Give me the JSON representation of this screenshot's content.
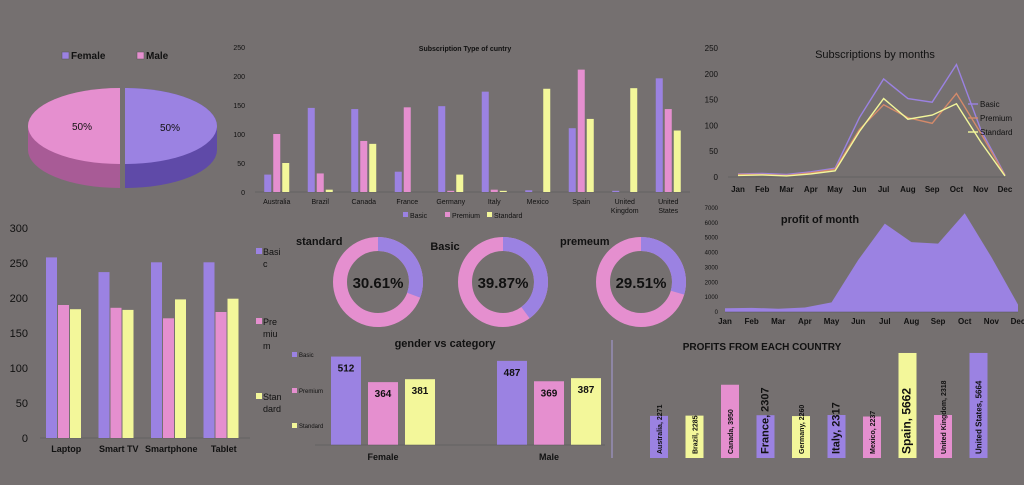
{
  "colors": {
    "basic": "#9b82e2",
    "premium": "#e58fcf",
    "standard": "#f3f79a",
    "bg": "#757070",
    "female": "#9b82e2",
    "male": "#e58fcf"
  },
  "chart_data": [
    {
      "id": "gender_pie",
      "type": "pie",
      "legend": [
        "Female",
        "Male"
      ],
      "values": [
        50,
        50
      ],
      "labels": [
        "50%",
        "50%"
      ]
    },
    {
      "id": "country_subs",
      "type": "bar",
      "title": "Subscription Type of cuntry",
      "categories": [
        "Australia",
        "Brazil",
        "Canada",
        "France",
        "Germany",
        "Italy",
        "Mexico",
        "Spain",
        "United Kingdom",
        "United States"
      ],
      "ylim": [
        0,
        250
      ],
      "yticks": [
        0,
        50,
        100,
        150,
        200,
        250
      ],
      "series": [
        {
          "name": "Basic",
          "values": [
            30,
            145,
            143,
            35,
            148,
            173,
            3,
            110,
            2,
            196
          ]
        },
        {
          "name": "Premium",
          "values": [
            100,
            32,
            88,
            146,
            2,
            4,
            0,
            211,
            0,
            143
          ]
        },
        {
          "name": "Standard",
          "values": [
            50,
            4,
            83,
            0,
            30,
            2,
            178,
            126,
            179,
            106
          ]
        }
      ]
    },
    {
      "id": "monthly_subs",
      "type": "line",
      "title": "Subscriptions by months",
      "categories": [
        "Jan",
        "Feb",
        "Mar",
        "Apr",
        "May",
        "Jun",
        "Jul",
        "Aug",
        "Sep",
        "Oct",
        "Nov",
        "Dec"
      ],
      "ylim": [
        0,
        250
      ],
      "yticks": [
        0,
        50,
        100,
        150,
        200,
        250
      ],
      "series": [
        {
          "name": "Basic",
          "values": [
            6,
            7,
            5,
            10,
            17,
            115,
            190,
            152,
            145,
            218,
            92,
            4
          ]
        },
        {
          "name": "Premium",
          "values": [
            5,
            5,
            3,
            8,
            15,
            92,
            140,
            115,
            104,
            162,
            85,
            3
          ]
        },
        {
          "name": "Standard",
          "values": [
            3,
            4,
            2,
            6,
            12,
            88,
            152,
            112,
            120,
            142,
            68,
            2
          ]
        }
      ]
    },
    {
      "id": "device_subs",
      "type": "bar",
      "categories": [
        "Laptop",
        "Smart TV",
        "Smartphone",
        "Tablet"
      ],
      "ylim": [
        0,
        300
      ],
      "yticks": [
        0,
        50,
        100,
        150,
        200,
        250,
        300
      ],
      "series": [
        {
          "name": "Basic",
          "legend_lines": [
            "Basi",
            "c"
          ],
          "values": [
            258,
            237,
            251,
            251
          ]
        },
        {
          "name": "Premium",
          "legend_lines": [
            "Pre",
            "miu",
            "m"
          ],
          "values": [
            190,
            186,
            171,
            180
          ]
        },
        {
          "name": "Standard",
          "legend_lines": [
            "Stan",
            "dard"
          ],
          "values": [
            184,
            183,
            198,
            199
          ]
        }
      ]
    },
    {
      "id": "share_donuts",
      "type": "pie",
      "items": [
        {
          "title": "standard",
          "value": 30.61,
          "label": "30.61%"
        },
        {
          "title": "Basic",
          "value": 39.87,
          "label": "39.87%"
        },
        {
          "title": "premeum",
          "value": 29.51,
          "label": "29.51%"
        }
      ]
    },
    {
      "id": "monthly_profit",
      "type": "area",
      "title": "profit of month",
      "categories": [
        "Jan",
        "Feb",
        "Mar",
        "Apr",
        "May",
        "Jun",
        "Jul",
        "Aug",
        "Sep",
        "Oct",
        "Nov",
        "Dec"
      ],
      "ylim": [
        0,
        7000
      ],
      "yticks": [
        0,
        1000,
        2000,
        3000,
        4000,
        5000,
        6000,
        7000
      ],
      "values": [
        250,
        280,
        220,
        300,
        650,
        3500,
        5950,
        4700,
        4600,
        6650,
        3700,
        500
      ]
    },
    {
      "id": "gender_category",
      "type": "bar",
      "title": "gender vs category",
      "categories": [
        "Female",
        "Male"
      ],
      "ylim": [
        0,
        550
      ],
      "series": [
        {
          "name": "Basic",
          "values": [
            512,
            487
          ]
        },
        {
          "name": "Premium",
          "values": [
            364,
            369
          ]
        },
        {
          "name": "Standard",
          "values": [
            381,
            387
          ]
        }
      ]
    },
    {
      "id": "country_profit",
      "type": "bar",
      "title": "PROFITS FROM EACH COUNTRY",
      "items": [
        {
          "label": "Australia, 2271",
          "value": 2271,
          "series": "basic"
        },
        {
          "label": "Brazil, 2285",
          "value": 2285,
          "series": "standard"
        },
        {
          "label": "Canada, 3950",
          "value": 3950,
          "series": "premium"
        },
        {
          "label": "France, 2307",
          "value": 2307,
          "series": "basic"
        },
        {
          "label": "Germany, 2260",
          "value": 2260,
          "series": "standard"
        },
        {
          "label": "Italy, 2317",
          "value": 2317,
          "series": "basic"
        },
        {
          "label": "Mexico, 2237",
          "value": 2237,
          "series": "premium"
        },
        {
          "label": "Spain, 5662",
          "value": 5662,
          "series": "standard"
        },
        {
          "label": "United Kingdom, 2318",
          "value": 2318,
          "series": "premium"
        },
        {
          "label": "United States, 5664",
          "value": 5664,
          "series": "basic"
        }
      ]
    }
  ]
}
